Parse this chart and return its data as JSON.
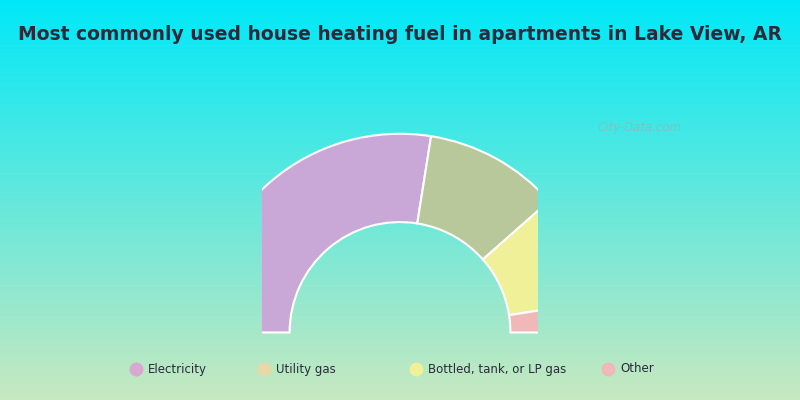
{
  "title": "Most commonly used house heating fuel in apartments in Lake View, AR",
  "title_color": "#2a2a3a",
  "segments": [
    {
      "label": "Electricity",
      "value": 55,
      "color": "#c9a8d8"
    },
    {
      "label": "Utility gas",
      "value": 22,
      "color": "#b8c89a"
    },
    {
      "label": "Bottled, tank, or LP gas",
      "value": 18,
      "color": "#f0f098"
    },
    {
      "label": "Other",
      "value": 5,
      "color": "#f0b8b8"
    }
  ],
  "legend_colors": [
    "#d8a8d0",
    "#e8d8a8",
    "#f0f098",
    "#f0b8b8"
  ],
  "legend_labels": [
    "Electricity",
    "Utility gas",
    "Bottled, tank, or LP gas",
    "Other"
  ],
  "watermark": "City-Data.com",
  "bg_color_top": "#00e8f8",
  "bg_color_bottom_left": "#c8e8c0",
  "bg_color_bottom_right": "#c8e8c0"
}
